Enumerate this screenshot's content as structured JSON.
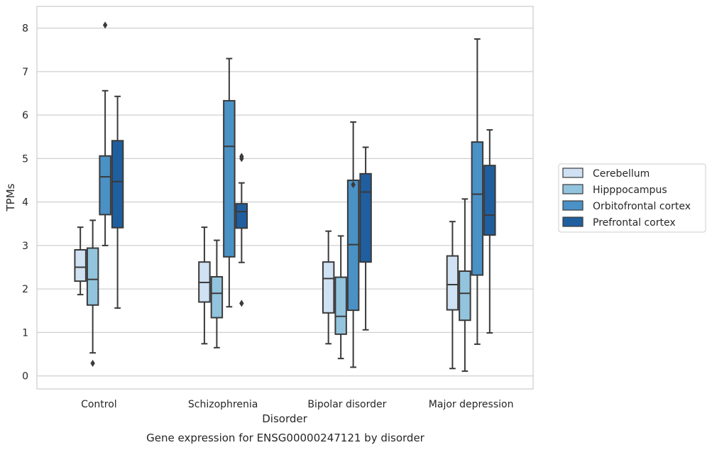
{
  "chart_data": {
    "type": "box",
    "xlabel": "Disorder",
    "ylabel": "TPMs",
    "caption": "Gene expression for ENSG00000247121 by disorder",
    "categories": [
      "Control",
      "Schizophrenia",
      "Bipolar disorder",
      "Major depression"
    ],
    "ylim": [
      -0.3,
      8.5
    ],
    "yticks": [
      0,
      1,
      2,
      3,
      4,
      5,
      6,
      7,
      8
    ],
    "grid": "horizontal",
    "legend_position": "right",
    "series": [
      {
        "name": "Cerebellum",
        "color": "#cfe1f2",
        "boxes": [
          {
            "whislo": 1.87,
            "q1": 2.18,
            "med": 2.5,
            "q3": 2.9,
            "whishi": 3.42,
            "fliers": []
          },
          {
            "whislo": 0.74,
            "q1": 1.7,
            "med": 2.15,
            "q3": 2.62,
            "whishi": 3.42,
            "fliers": []
          },
          {
            "whislo": 0.74,
            "q1": 1.45,
            "med": 2.24,
            "q3": 2.62,
            "whishi": 3.33,
            "fliers": []
          },
          {
            "whislo": 0.17,
            "q1": 1.52,
            "med": 2.1,
            "q3": 2.76,
            "whishi": 3.55,
            "fliers": []
          }
        ]
      },
      {
        "name": "Hipppocampus",
        "color": "#93c4de",
        "boxes": [
          {
            "whislo": 0.53,
            "q1": 1.63,
            "med": 2.22,
            "q3": 2.94,
            "whishi": 3.58,
            "fliers": [
              0.29
            ]
          },
          {
            "whislo": 0.65,
            "q1": 1.34,
            "med": 1.9,
            "q3": 2.28,
            "whishi": 3.12,
            "fliers": []
          },
          {
            "whislo": 0.4,
            "q1": 0.96,
            "med": 1.37,
            "q3": 2.27,
            "whishi": 3.22,
            "fliers": []
          },
          {
            "whislo": 0.11,
            "q1": 1.28,
            "med": 1.9,
            "q3": 2.41,
            "whishi": 4.07,
            "fliers": []
          }
        ]
      },
      {
        "name": "Orbitofrontal cortex",
        "color": "#4a91c6",
        "boxes": [
          {
            "whislo": 3.0,
            "q1": 3.71,
            "med": 4.58,
            "q3": 5.06,
            "whishi": 6.56,
            "fliers": [
              8.07
            ]
          },
          {
            "whislo": 1.59,
            "q1": 2.74,
            "med": 5.28,
            "q3": 6.33,
            "whishi": 7.3,
            "fliers": []
          },
          {
            "whislo": 0.2,
            "q1": 1.51,
            "med": 3.02,
            "q3": 4.5,
            "whishi": 5.84,
            "fliers": [
              4.4
            ]
          },
          {
            "whislo": 0.73,
            "q1": 2.32,
            "med": 4.18,
            "q3": 5.38,
            "whishi": 7.75,
            "fliers": []
          }
        ]
      },
      {
        "name": "Prefrontal cortex",
        "color": "#1f5fa0",
        "boxes": [
          {
            "whislo": 1.56,
            "q1": 3.41,
            "med": 4.47,
            "q3": 5.41,
            "whishi": 6.43,
            "fliers": []
          },
          {
            "whislo": 2.61,
            "q1": 3.4,
            "med": 3.78,
            "q3": 3.96,
            "whishi": 4.44,
            "fliers": [
              1.67,
              5.0,
              5.05
            ]
          },
          {
            "whislo": 1.06,
            "q1": 2.62,
            "med": 4.23,
            "q3": 4.65,
            "whishi": 5.26,
            "fliers": []
          },
          {
            "whislo": 0.99,
            "q1": 3.24,
            "med": 3.7,
            "q3": 4.84,
            "whishi": 5.66,
            "fliers": []
          }
        ]
      }
    ]
  }
}
